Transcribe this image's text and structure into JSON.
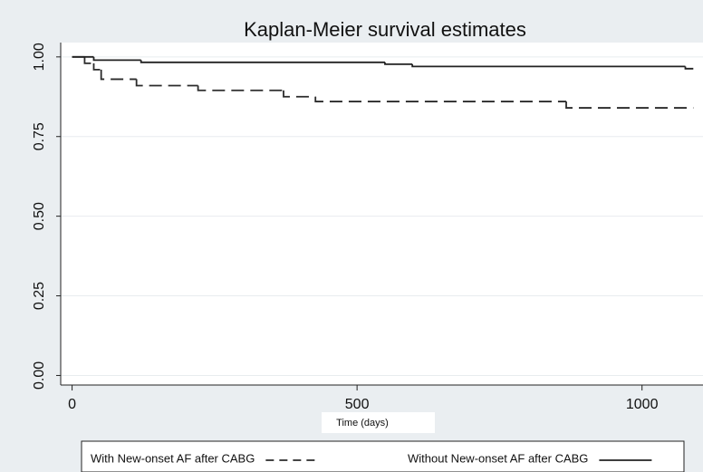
{
  "chart_data": {
    "type": "step",
    "title": "Kaplan-Meier survival estimates",
    "x_label": "Time (days)",
    "xlim": [
      -20,
      1107
    ],
    "xticks": [
      0,
      500,
      1000
    ],
    "ylim": [
      -0.03,
      1.045
    ],
    "yticks": [
      {
        "value": 0,
        "label": "0.00"
      },
      {
        "value": 0.25,
        "label": "0.25"
      },
      {
        "value": 0.5,
        "label": "0.50"
      },
      {
        "value": 0.75,
        "label": "0.75"
      },
      {
        "value": 1,
        "label": "1.00"
      }
    ],
    "grid": true,
    "legend": "bottom",
    "series": [
      {
        "name": "With New-onset AF after CABG",
        "color": "#2b2b2b",
        "dash": true,
        "x": [
          0,
          22,
          38,
          51,
          113,
          221,
          371,
          427,
          867,
          1090
        ],
        "values": [
          1.0,
          0.98,
          0.96,
          0.93,
          0.91,
          0.895,
          0.875,
          0.86,
          0.84,
          0.84
        ]
      },
      {
        "name": "Without New-onset AF after CABG",
        "color": "#222222",
        "dash": false,
        "x": [
          0,
          38,
          121,
          549,
          597,
          1076,
          1090
        ],
        "values": [
          1.0,
          0.99,
          0.983,
          0.977,
          0.97,
          0.963,
          0.963
        ]
      }
    ]
  }
}
